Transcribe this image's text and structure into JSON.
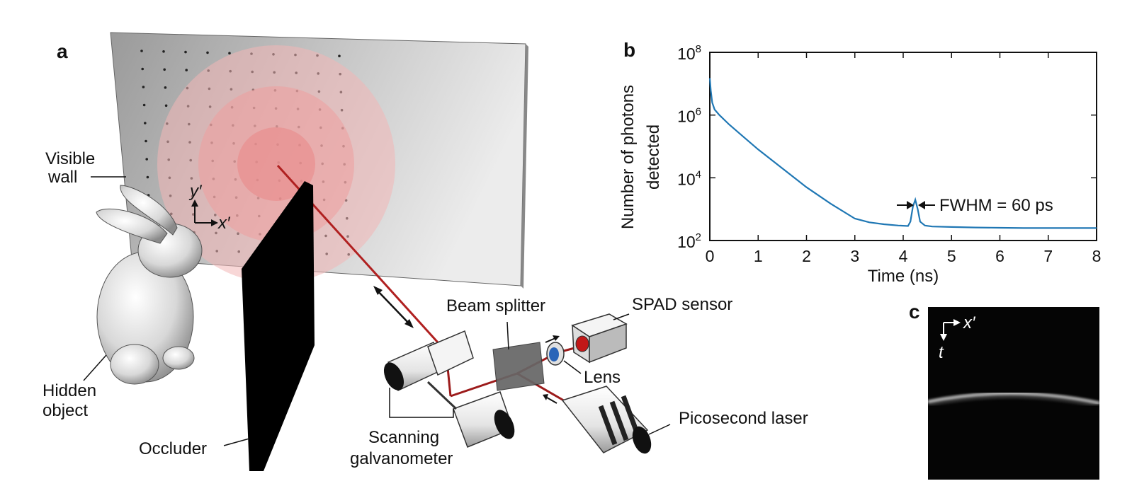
{
  "panel_letters": {
    "a": "a",
    "b": "b",
    "c": "c"
  },
  "scene": {
    "labels": {
      "visible_wall_1": "Visible",
      "visible_wall_2": "wall",
      "hidden_object_1": "Hidden",
      "hidden_object_2": "object",
      "occluder": "Occluder",
      "beam_splitter": "Beam splitter",
      "spad_sensor": "SPAD sensor",
      "lens": "Lens",
      "picosecond_laser": "Picosecond laser",
      "scanning_1": "Scanning",
      "scanning_2": "galvanometer"
    },
    "wall_axes": {
      "y": "y′",
      "x": "x′"
    },
    "colors": {
      "laser": "#b02020",
      "wall": "#cfcfcf",
      "occluder": "#000000",
      "lens": "#2a64b8"
    }
  },
  "chart_data": {
    "type": "line",
    "title": "",
    "xlabel": "Time (ns)",
    "ylabel_line1": "Number of photons",
    "ylabel_line2": "detected",
    "xlim": [
      0,
      8
    ],
    "ylim": [
      100,
      100000000
    ],
    "yscale": "log",
    "x_ticks": [
      "0",
      "1",
      "2",
      "3",
      "4",
      "5",
      "6",
      "7",
      "8"
    ],
    "y_ticks": [
      {
        "value": 100,
        "base": "10",
        "exp": "2"
      },
      {
        "value": 10000,
        "base": "10",
        "exp": "4"
      },
      {
        "value": 1000000,
        "base": "10",
        "exp": "6"
      },
      {
        "value": 100000000,
        "base": "10",
        "exp": "8"
      }
    ],
    "series": [
      {
        "color": "#1f77b4",
        "x": [
          0,
          0.02,
          0.05,
          0.1,
          0.2,
          0.4,
          0.7,
          1.0,
          1.5,
          2.0,
          2.5,
          3.0,
          3.3,
          3.6,
          3.9,
          4.1,
          4.15,
          4.2,
          4.25,
          4.3,
          4.35,
          4.45,
          4.6,
          5.0,
          5.5,
          6.0,
          6.5,
          7.0,
          7.5,
          8.0
        ],
        "y": [
          15000000,
          6000000,
          2500000,
          1500000,
          1000000,
          500000,
          200000,
          80000,
          20000,
          5000,
          1500,
          500,
          380,
          330,
          300,
          290,
          400,
          1200,
          2000,
          1000,
          400,
          300,
          280,
          270,
          260,
          255,
          250,
          250,
          250,
          250
        ]
      }
    ],
    "annotation": "FWHM = 60 ps"
  },
  "streak": {
    "axis_x": "x′",
    "axis_t": "t"
  }
}
